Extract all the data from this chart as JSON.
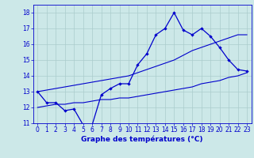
{
  "title": "Graphe des températures (°C)",
  "bg_color": "#cce8e8",
  "grid_color": "#aacccc",
  "line_color": "#0000cc",
  "xlim": [
    -0.5,
    23.5
  ],
  "ylim": [
    11,
    18.5
  ],
  "xticks": [
    0,
    1,
    2,
    3,
    4,
    5,
    6,
    7,
    8,
    9,
    10,
    11,
    12,
    13,
    14,
    15,
    16,
    17,
    18,
    19,
    20,
    21,
    22,
    23
  ],
  "yticks": [
    11,
    12,
    13,
    14,
    15,
    16,
    17,
    18
  ],
  "hours": [
    0,
    1,
    2,
    3,
    4,
    5,
    6,
    7,
    8,
    9,
    10,
    11,
    12,
    13,
    14,
    15,
    16,
    17,
    18,
    19,
    20,
    21,
    22,
    23
  ],
  "temp_main": [
    13.0,
    12.3,
    12.3,
    11.8,
    11.9,
    10.9,
    10.9,
    12.8,
    13.2,
    13.5,
    13.5,
    14.7,
    15.4,
    16.6,
    17.0,
    18.0,
    16.9,
    16.6,
    17.0,
    16.5,
    15.8,
    15.0,
    14.4,
    14.3
  ],
  "temp_min": [
    12.0,
    12.1,
    12.2,
    12.2,
    12.3,
    12.3,
    12.4,
    12.5,
    12.5,
    12.6,
    12.6,
    12.7,
    12.8,
    12.9,
    13.0,
    13.1,
    13.2,
    13.3,
    13.5,
    13.6,
    13.7,
    13.9,
    14.0,
    14.2
  ],
  "temp_max": [
    13.0,
    13.1,
    13.2,
    13.3,
    13.4,
    13.5,
    13.6,
    13.7,
    13.8,
    13.9,
    14.0,
    14.2,
    14.4,
    14.6,
    14.8,
    15.0,
    15.3,
    15.6,
    15.8,
    16.0,
    16.2,
    16.4,
    16.6,
    16.6
  ],
  "label_fontsize": 5.5,
  "xlabel_fontsize": 6.5
}
